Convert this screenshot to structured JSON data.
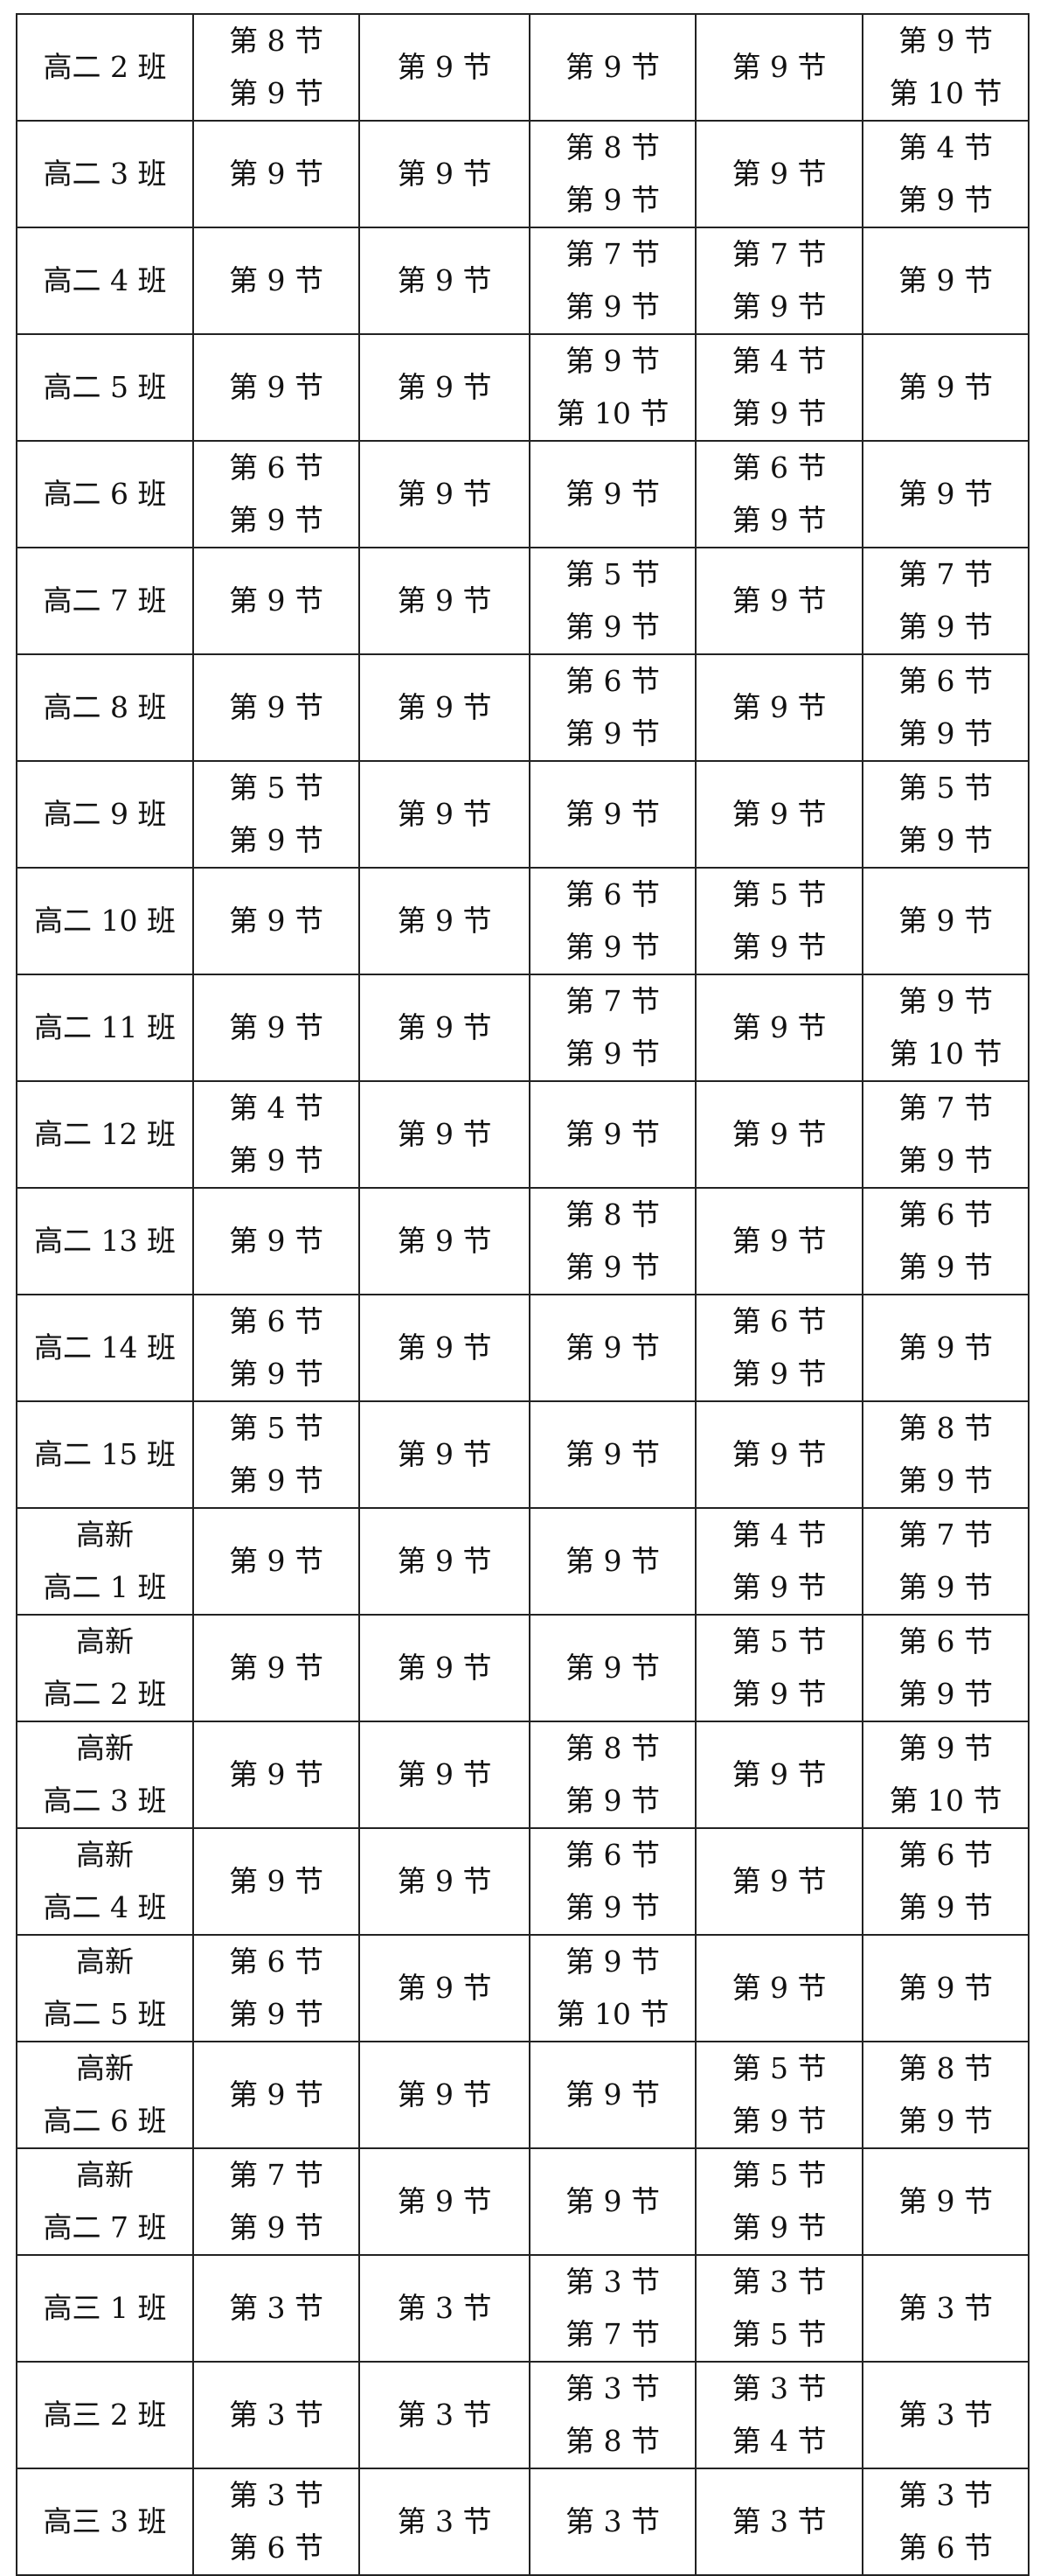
{
  "rows": [
    {
      "class": [
        "高二 2 班"
      ],
      "cells": [
        [
          "第 8 节",
          "第 9 节"
        ],
        [
          "第 9 节"
        ],
        [
          "第 9 节"
        ],
        [
          "第 9 节"
        ],
        [
          "第 9 节",
          "第 10 节"
        ]
      ]
    },
    {
      "class": [
        "高二 3 班"
      ],
      "cells": [
        [
          "第 9 节"
        ],
        [
          "第 9 节"
        ],
        [
          "第 8 节",
          "第 9 节"
        ],
        [
          "第 9 节"
        ],
        [
          "第 4 节",
          "第 9 节"
        ]
      ]
    },
    {
      "class": [
        "高二 4 班"
      ],
      "cells": [
        [
          "第 9 节"
        ],
        [
          "第 9 节"
        ],
        [
          "第 7 节",
          "第 9 节"
        ],
        [
          "第 7 节",
          "第 9 节"
        ],
        [
          "第 9 节"
        ]
      ]
    },
    {
      "class": [
        "高二 5 班"
      ],
      "cells": [
        [
          "第 9 节"
        ],
        [
          "第 9 节"
        ],
        [
          "第 9 节",
          "第 10 节"
        ],
        [
          "第 4 节",
          "第 9 节"
        ],
        [
          "第 9 节"
        ]
      ]
    },
    {
      "class": [
        "高二 6 班"
      ],
      "cells": [
        [
          "第 6 节",
          "第 9 节"
        ],
        [
          "第 9 节"
        ],
        [
          "第 9 节"
        ],
        [
          "第 6 节",
          "第 9 节"
        ],
        [
          "第 9 节"
        ]
      ]
    },
    {
      "class": [
        "高二 7 班"
      ],
      "cells": [
        [
          "第 9 节"
        ],
        [
          "第 9 节"
        ],
        [
          "第 5 节",
          "第 9 节"
        ],
        [
          "第 9 节"
        ],
        [
          "第 7 节",
          "第 9 节"
        ]
      ]
    },
    {
      "class": [
        "高二 8 班"
      ],
      "cells": [
        [
          "第 9 节"
        ],
        [
          "第 9 节"
        ],
        [
          "第 6 节",
          "第 9 节"
        ],
        [
          "第 9 节"
        ],
        [
          "第 6 节",
          "第 9 节"
        ]
      ]
    },
    {
      "class": [
        "高二 9 班"
      ],
      "cells": [
        [
          "第 5 节",
          "第 9 节"
        ],
        [
          "第 9 节"
        ],
        [
          "第 9 节"
        ],
        [
          "第 9 节"
        ],
        [
          "第 5 节",
          "第 9 节"
        ]
      ]
    },
    {
      "class": [
        "高二 10 班"
      ],
      "cells": [
        [
          "第 9 节"
        ],
        [
          "第 9 节"
        ],
        [
          "第 6 节",
          "第 9 节"
        ],
        [
          "第 5 节",
          "第 9 节"
        ],
        [
          "第 9 节"
        ]
      ]
    },
    {
      "class": [
        "高二 11 班"
      ],
      "cells": [
        [
          "第 9 节"
        ],
        [
          "第 9 节"
        ],
        [
          "第 7 节",
          "第 9 节"
        ],
        [
          "第 9 节"
        ],
        [
          "第 9 节",
          "第 10 节"
        ]
      ]
    },
    {
      "class": [
        "高二 12 班"
      ],
      "cells": [
        [
          "第 4 节",
          "第 9 节"
        ],
        [
          "第 9 节"
        ],
        [
          "第 9 节"
        ],
        [
          "第 9 节"
        ],
        [
          "第 7 节",
          "第 9 节"
        ]
      ]
    },
    {
      "class": [
        "高二 13 班"
      ],
      "cells": [
        [
          "第 9 节"
        ],
        [
          "第 9 节"
        ],
        [
          "第 8 节",
          "第 9 节"
        ],
        [
          "第 9 节"
        ],
        [
          "第 6 节",
          "第 9 节"
        ]
      ]
    },
    {
      "class": [
        "高二 14 班"
      ],
      "cells": [
        [
          "第 6 节",
          "第 9 节"
        ],
        [
          "第 9 节"
        ],
        [
          "第 9 节"
        ],
        [
          "第 6 节",
          "第 9 节"
        ],
        [
          "第 9 节"
        ]
      ]
    },
    {
      "class": [
        "高二 15 班"
      ],
      "cells": [
        [
          "第 5 节",
          "第 9 节"
        ],
        [
          "第 9 节"
        ],
        [
          "第 9 节"
        ],
        [
          "第 9 节"
        ],
        [
          "第 8 节",
          "第 9 节"
        ]
      ]
    },
    {
      "class": [
        "高新",
        "高二 1 班"
      ],
      "cells": [
        [
          "第 9 节"
        ],
        [
          "第 9 节"
        ],
        [
          "第 9 节"
        ],
        [
          "第 4 节",
          "第 9 节"
        ],
        [
          "第 7 节",
          "第 9 节"
        ]
      ]
    },
    {
      "class": [
        "高新",
        "高二 2 班"
      ],
      "cells": [
        [
          "第 9 节"
        ],
        [
          "第 9 节"
        ],
        [
          "第 9 节"
        ],
        [
          "第 5 节",
          "第 9 节"
        ],
        [
          "第 6 节",
          "第 9 节"
        ]
      ]
    },
    {
      "class": [
        "高新",
        "高二 3 班"
      ],
      "cells": [
        [
          "第 9 节"
        ],
        [
          "第 9 节"
        ],
        [
          "第 8 节",
          "第 9 节"
        ],
        [
          "第 9 节"
        ],
        [
          "第 9 节",
          "第 10 节"
        ]
      ]
    },
    {
      "class": [
        "高新",
        "高二 4 班"
      ],
      "cells": [
        [
          "第 9 节"
        ],
        [
          "第 9 节"
        ],
        [
          "第 6 节",
          "第 9 节"
        ],
        [
          "第 9 节"
        ],
        [
          "第 6 节",
          "第 9 节"
        ]
      ]
    },
    {
      "class": [
        "高新",
        "高二 5 班"
      ],
      "cells": [
        [
          "第 6 节",
          "第 9 节"
        ],
        [
          "第 9 节"
        ],
        [
          "第 9 节",
          "第 10 节"
        ],
        [
          "第 9 节"
        ],
        [
          "第 9 节"
        ]
      ]
    },
    {
      "class": [
        "高新",
        "高二 6 班"
      ],
      "cells": [
        [
          "第 9 节"
        ],
        [
          "第 9 节"
        ],
        [
          "第 9 节"
        ],
        [
          "第 5 节",
          "第 9 节"
        ],
        [
          "第 8 节",
          "第 9 节"
        ]
      ]
    },
    {
      "class": [
        "高新",
        "高二 7 班"
      ],
      "cells": [
        [
          "第 7 节",
          "第 9 节"
        ],
        [
          "第 9 节"
        ],
        [
          "第 9 节"
        ],
        [
          "第 5 节",
          "第 9 节"
        ],
        [
          "第 9 节"
        ]
      ]
    },
    {
      "class": [
        "高三 1 班"
      ],
      "cells": [
        [
          "第 3 节"
        ],
        [
          "第 3 节"
        ],
        [
          "第 3 节",
          "第 7 节"
        ],
        [
          "第 3 节",
          "第 5 节"
        ],
        [
          "第 3 节"
        ]
      ]
    },
    {
      "class": [
        "高三 2 班"
      ],
      "cells": [
        [
          "第 3 节"
        ],
        [
          "第 3 节"
        ],
        [
          "第 3 节",
          "第 8 节"
        ],
        [
          "第 3 节",
          "第 4 节"
        ],
        [
          "第 3 节"
        ]
      ]
    },
    {
      "class": [
        "高三 3 班"
      ],
      "cells": [
        [
          "第 3 节",
          "第 6 节"
        ],
        [
          "第 3 节"
        ],
        [
          "第 3 节"
        ],
        [
          "第 3 节"
        ],
        [
          "第 3 节",
          "第 6 节"
        ]
      ]
    }
  ]
}
